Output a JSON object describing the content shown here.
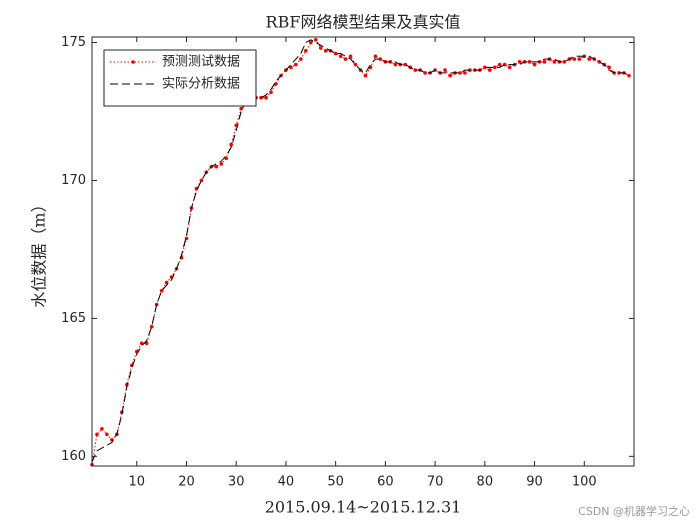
{
  "chart_data": {
    "type": "line",
    "title": "RBF网络模型结果及真实值",
    "ylabel": "水位数据（m）",
    "xlabel": "2015.09.14~2015.12.31",
    "watermark": "CSDN @机器学习之心",
    "legend": "upper left",
    "x": [
      1,
      2,
      3,
      4,
      5,
      6,
      7,
      8,
      9,
      10,
      11,
      12,
      13,
      14,
      15,
      16,
      17,
      18,
      19,
      20,
      21,
      22,
      23,
      24,
      25,
      26,
      27,
      28,
      29,
      30,
      31,
      32,
      33,
      34,
      35,
      36,
      37,
      38,
      39,
      40,
      41,
      42,
      43,
      44,
      45,
      46,
      47,
      48,
      49,
      50,
      51,
      52,
      53,
      54,
      55,
      56,
      57,
      58,
      59,
      60,
      61,
      62,
      63,
      64,
      65,
      66,
      67,
      68,
      69,
      70,
      71,
      72,
      73,
      74,
      75,
      76,
      77,
      78,
      79,
      80,
      81,
      82,
      83,
      84,
      85,
      86,
      87,
      88,
      89,
      90,
      91,
      92,
      93,
      94,
      95,
      96,
      97,
      98,
      99,
      100,
      101,
      102,
      103,
      104,
      105,
      106,
      107,
      108,
      109
    ],
    "series": [
      {
        "name": "预测测试数据",
        "color": "#ff0000",
        "style": "dotted",
        "marker": true,
        "values": [
          159.7,
          160.8,
          161.0,
          160.8,
          160.6,
          160.8,
          161.6,
          162.6,
          163.3,
          163.8,
          164.1,
          164.1,
          164.7,
          165.5,
          166.0,
          166.3,
          166.5,
          166.8,
          167.2,
          167.9,
          169.0,
          169.7,
          170.0,
          170.3,
          170.5,
          170.5,
          170.6,
          170.8,
          171.3,
          172.0,
          172.6,
          172.9,
          173.0,
          173.0,
          173.0,
          173.0,
          173.2,
          173.5,
          173.8,
          174.0,
          174.1,
          174.2,
          174.4,
          174.7,
          175.0,
          175.1,
          174.8,
          174.7,
          174.7,
          174.6,
          174.5,
          174.4,
          174.5,
          174.2,
          174.0,
          173.8,
          174.1,
          174.5,
          174.4,
          174.3,
          174.3,
          174.2,
          174.2,
          174.2,
          174.1,
          174.0,
          174.0,
          173.9,
          173.9,
          174.0,
          173.9,
          174.0,
          173.8,
          173.9,
          173.9,
          173.9,
          174.0,
          174.0,
          174.0,
          174.1,
          174.0,
          174.1,
          174.2,
          174.2,
          174.1,
          174.2,
          174.3,
          174.3,
          174.3,
          174.2,
          174.3,
          174.3,
          174.4,
          174.3,
          174.3,
          174.3,
          174.4,
          174.4,
          174.4,
          174.5,
          174.4,
          174.4,
          174.3,
          174.2,
          174.1,
          173.9,
          173.9,
          173.9,
          173.8
        ]
      },
      {
        "name": "实际分析数据",
        "color": "#000000",
        "style": "dashed",
        "marker": false,
        "values": [
          159.8,
          160.2,
          160.3,
          160.4,
          160.5,
          160.8,
          161.5,
          162.5,
          163.2,
          163.7,
          164.0,
          164.2,
          164.7,
          165.5,
          166.0,
          166.2,
          166.4,
          166.8,
          167.3,
          168.0,
          169.0,
          169.6,
          170.0,
          170.3,
          170.5,
          170.6,
          170.7,
          170.9,
          171.2,
          171.8,
          172.5,
          172.9,
          173.0,
          173.0,
          173.0,
          173.1,
          173.3,
          173.6,
          173.8,
          174.0,
          174.2,
          174.4,
          174.6,
          175.0,
          175.1,
          175.0,
          174.9,
          174.8,
          174.7,
          174.6,
          174.6,
          174.5,
          174.4,
          174.2,
          174.0,
          173.9,
          174.2,
          174.4,
          174.4,
          174.3,
          174.3,
          174.3,
          174.2,
          174.2,
          174.1,
          174.0,
          174.0,
          173.9,
          173.9,
          174.0,
          173.9,
          173.9,
          173.9,
          173.9,
          173.9,
          174.0,
          174.0,
          174.0,
          174.0,
          174.1,
          174.1,
          174.1,
          174.1,
          174.2,
          174.2,
          174.2,
          174.2,
          174.3,
          174.3,
          174.3,
          174.3,
          174.4,
          174.4,
          174.4,
          174.3,
          174.3,
          174.4,
          174.5,
          174.5,
          174.5,
          174.5,
          174.4,
          174.3,
          174.2,
          174.0,
          173.9,
          173.9,
          173.9,
          173.8
        ]
      }
    ],
    "xlim": [
      1,
      110
    ],
    "xticks": [
      10,
      20,
      30,
      40,
      50,
      60,
      70,
      80,
      90,
      100
    ],
    "ylim": [
      159.65,
      175.2
    ],
    "yticks": [
      160,
      165,
      170,
      175
    ]
  }
}
